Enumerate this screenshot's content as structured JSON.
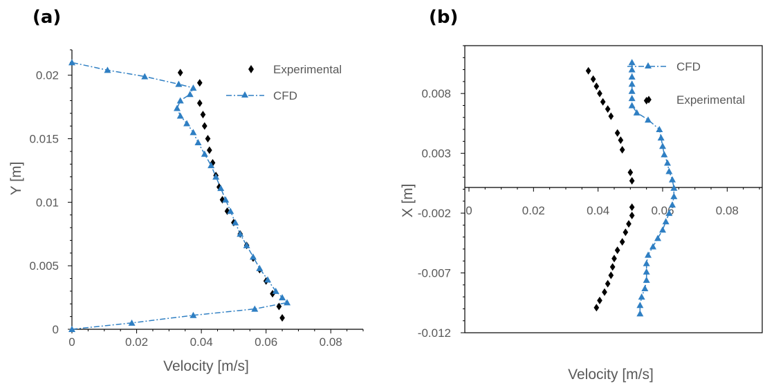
{
  "colors": {
    "cfd": "#2F7FC3",
    "experimental": "#000000",
    "axis": "#000000",
    "text": "#595959"
  },
  "chart_data": [
    {
      "panel_label": "(a)",
      "type": "scatter",
      "xlabel": "Velocity [m/s]",
      "ylabel": "Y [m]",
      "xlim": [
        0,
        0.09
      ],
      "ylim": [
        0,
        0.022
      ],
      "x_ticks": [
        "0",
        "0.02",
        "0.04",
        "0.06",
        "0.08"
      ],
      "y_ticks": [
        "0",
        "0.005",
        "0.01",
        "0.015",
        "0.02"
      ],
      "legend_position": "top-right",
      "series": [
        {
          "name": "Experimental",
          "marker": "diamond",
          "line": "none",
          "points": [
            [
              0.0335,
              0.0202
            ],
            [
              0.0395,
              0.0194
            ],
            [
              0.0395,
              0.0178
            ],
            [
              0.0405,
              0.0169
            ],
            [
              0.041,
              0.016
            ],
            [
              0.042,
              0.015
            ],
            [
              0.0425,
              0.0141
            ],
            [
              0.0435,
              0.0131
            ],
            [
              0.0445,
              0.0121
            ],
            [
              0.0455,
              0.0112
            ],
            [
              0.0465,
              0.0102
            ],
            [
              0.048,
              0.0093
            ],
            [
              0.05,
              0.0084
            ],
            [
              0.052,
              0.0075
            ],
            [
              0.054,
              0.0066
            ],
            [
              0.056,
              0.0056
            ],
            [
              0.058,
              0.0047
            ],
            [
              0.06,
              0.0038
            ],
            [
              0.062,
              0.0028
            ],
            [
              0.064,
              0.0018
            ],
            [
              0.065,
              0.0009
            ]
          ]
        },
        {
          "name": "CFD",
          "marker": "triangle",
          "line": "dashdot",
          "points": [
            [
              0.0,
              0.0
            ],
            [
              0.0185,
              0.0005
            ],
            [
              0.0375,
              0.0011
            ],
            [
              0.0565,
              0.0016
            ],
            [
              0.0665,
              0.0021
            ],
            [
              0.065,
              0.0025
            ],
            [
              0.063,
              0.003
            ],
            [
              0.0605,
              0.0039
            ],
            [
              0.058,
              0.0048
            ],
            [
              0.056,
              0.0057
            ],
            [
              0.054,
              0.0066
            ],
            [
              0.052,
              0.0075
            ],
            [
              0.0505,
              0.0084
            ],
            [
              0.049,
              0.0093
            ],
            [
              0.0475,
              0.0102
            ],
            [
              0.046,
              0.0111
            ],
            [
              0.0445,
              0.012
            ],
            [
              0.043,
              0.0129
            ],
            [
              0.041,
              0.0138
            ],
            [
              0.039,
              0.0147
            ],
            [
              0.0375,
              0.0155
            ],
            [
              0.0355,
              0.0162
            ],
            [
              0.0335,
              0.0168
            ],
            [
              0.0325,
              0.0174
            ],
            [
              0.0335,
              0.018
            ],
            [
              0.0365,
              0.0185
            ],
            [
              0.0375,
              0.019
            ],
            [
              0.033,
              0.0193
            ],
            [
              0.0225,
              0.0199
            ],
            [
              0.011,
              0.0204
            ],
            [
              0.0,
              0.021
            ]
          ]
        }
      ]
    },
    {
      "panel_label": "(b)",
      "type": "scatter",
      "xlabel": "Velocity [m/s]",
      "ylabel": "X [m]",
      "xlim": [
        0,
        0.09
      ],
      "ylim": [
        -0.012,
        0.012
      ],
      "x_ticks": [
        "0",
        "0.02",
        "0.04",
        "0.06",
        "0.08"
      ],
      "y_ticks": [
        "-0.012",
        "-0.007",
        "-0.002",
        "0.003",
        "0.008"
      ],
      "legend_position": "top-right",
      "series": [
        {
          "name": "CFD",
          "marker": "triangle",
          "line": "dashdot",
          "points": [
            [
              0.0505,
              0.0106
            ],
            [
              0.0505,
              0.01
            ],
            [
              0.0505,
              0.0094
            ],
            [
              0.0505,
              0.0088
            ],
            [
              0.0505,
              0.0082
            ],
            [
              0.0505,
              0.0076
            ],
            [
              0.0505,
              0.007
            ],
            [
              0.052,
              0.0064
            ],
            [
              0.0555,
              0.0058
            ],
            [
              0.059,
              0.005
            ],
            [
              0.0595,
              0.0043
            ],
            [
              0.06,
              0.0036
            ],
            [
              0.0605,
              0.0029
            ],
            [
              0.0615,
              0.0022
            ],
            [
              0.062,
              0.0015
            ],
            [
              0.063,
              0.0008
            ],
            [
              0.0635,
              0.0001
            ],
            [
              0.0635,
              -0.0006
            ],
            [
              0.063,
              -0.0013
            ],
            [
              0.062,
              -0.002
            ],
            [
              0.061,
              -0.0027
            ],
            [
              0.06,
              -0.0034
            ],
            [
              0.0585,
              -0.0041
            ],
            [
              0.057,
              -0.0048
            ],
            [
              0.0555,
              -0.0055
            ],
            [
              0.055,
              -0.0062
            ],
            [
              0.055,
              -0.0069
            ],
            [
              0.055,
              -0.0076
            ],
            [
              0.0545,
              -0.0083
            ],
            [
              0.0535,
              -0.009
            ],
            [
              0.053,
              -0.0097
            ],
            [
              0.053,
              -0.0104
            ]
          ]
        },
        {
          "name": "Experimental",
          "marker": "diamond",
          "line": "none",
          "points": [
            [
              0.055,
              0.0074
            ],
            [
              0.037,
              0.0099
            ],
            [
              0.0385,
              0.0092
            ],
            [
              0.0395,
              0.0086
            ],
            [
              0.0405,
              0.008
            ],
            [
              0.0415,
              0.0073
            ],
            [
              0.043,
              0.0067
            ],
            [
              0.044,
              0.0061
            ],
            [
              0.046,
              0.0047
            ],
            [
              0.047,
              0.0041
            ],
            [
              0.0475,
              0.0033
            ],
            [
              0.05,
              0.0014
            ],
            [
              0.0505,
              0.0007
            ],
            [
              0.0505,
              -0.0015
            ],
            [
              0.0505,
              -0.0022
            ],
            [
              0.0495,
              -0.0029
            ],
            [
              0.0485,
              -0.0036
            ],
            [
              0.0475,
              -0.0044
            ],
            [
              0.046,
              -0.0051
            ],
            [
              0.045,
              -0.0058
            ],
            [
              0.0445,
              -0.0065
            ],
            [
              0.044,
              -0.0072
            ],
            [
              0.043,
              -0.0079
            ],
            [
              0.042,
              -0.0086
            ],
            [
              0.0405,
              -0.0093
            ],
            [
              0.0395,
              -0.0099
            ]
          ]
        }
      ]
    }
  ]
}
